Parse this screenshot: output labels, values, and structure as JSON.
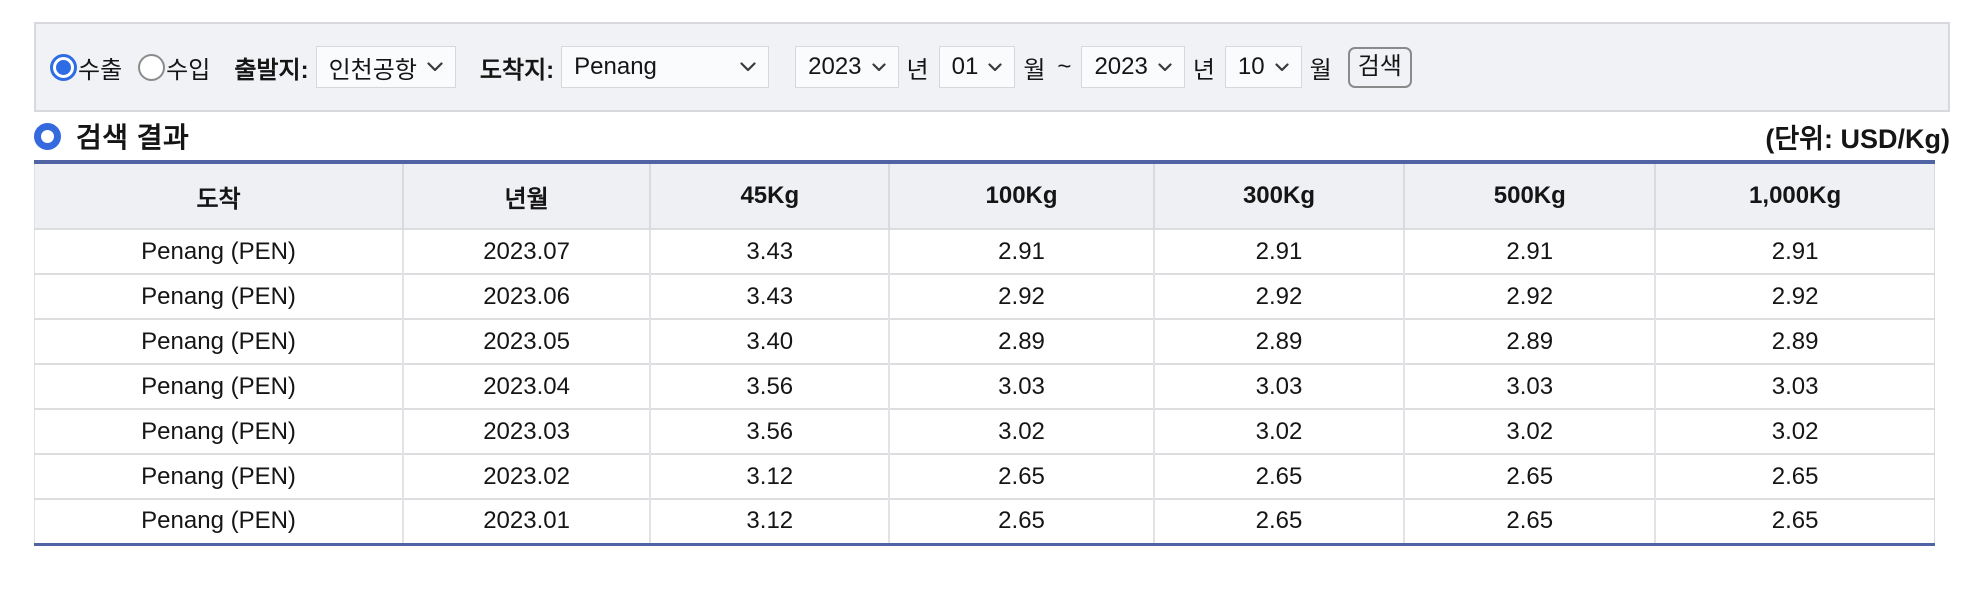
{
  "filter": {
    "radios": [
      {
        "label": "수출",
        "checked": true
      },
      {
        "label": "수입",
        "checked": false
      }
    ],
    "origin": {
      "label": "출발지:",
      "value": "인천공항"
    },
    "destination": {
      "label": "도착지:",
      "value": "Penang"
    },
    "period": {
      "from_year": "2023",
      "from_month": "01",
      "to_year": "2023",
      "to_month": "10",
      "year_suffix": "년",
      "month_suffix": "월",
      "separator": "~"
    },
    "search_label": "검색"
  },
  "results": {
    "title": "검색 결과",
    "unit_label": "(단위: USD/Kg)",
    "table": {
      "headers": [
        "도착",
        "년월",
        "45Kg",
        "100Kg",
        "300Kg",
        "500Kg",
        "1,000Kg"
      ],
      "rows": [
        [
          "Penang (PEN)",
          "2023.07",
          "3.43",
          "2.91",
          "2.91",
          "2.91",
          "2.91"
        ],
        [
          "Penang (PEN)",
          "2023.06",
          "3.43",
          "2.92",
          "2.92",
          "2.92",
          "2.92"
        ],
        [
          "Penang (PEN)",
          "2023.05",
          "3.40",
          "2.89",
          "2.89",
          "2.89",
          "2.89"
        ],
        [
          "Penang (PEN)",
          "2023.04",
          "3.56",
          "3.03",
          "3.03",
          "3.03",
          "3.03"
        ],
        [
          "Penang (PEN)",
          "2023.03",
          "3.56",
          "3.02",
          "3.02",
          "3.02",
          "3.02"
        ],
        [
          "Penang (PEN)",
          "2023.02",
          "3.12",
          "2.65",
          "2.65",
          "2.65",
          "2.65"
        ],
        [
          "Penang (PEN)",
          "2023.01",
          "3.12",
          "2.65",
          "2.65",
          "2.65",
          "2.65"
        ]
      ]
    }
  },
  "colors": {
    "accent_blue": "#3569de",
    "radio_blue": "#2e6ce5",
    "divider_blue": "#4f63a5",
    "panel_bg": "#f1f2f5",
    "header_row_bg": "#eef0f4"
  }
}
